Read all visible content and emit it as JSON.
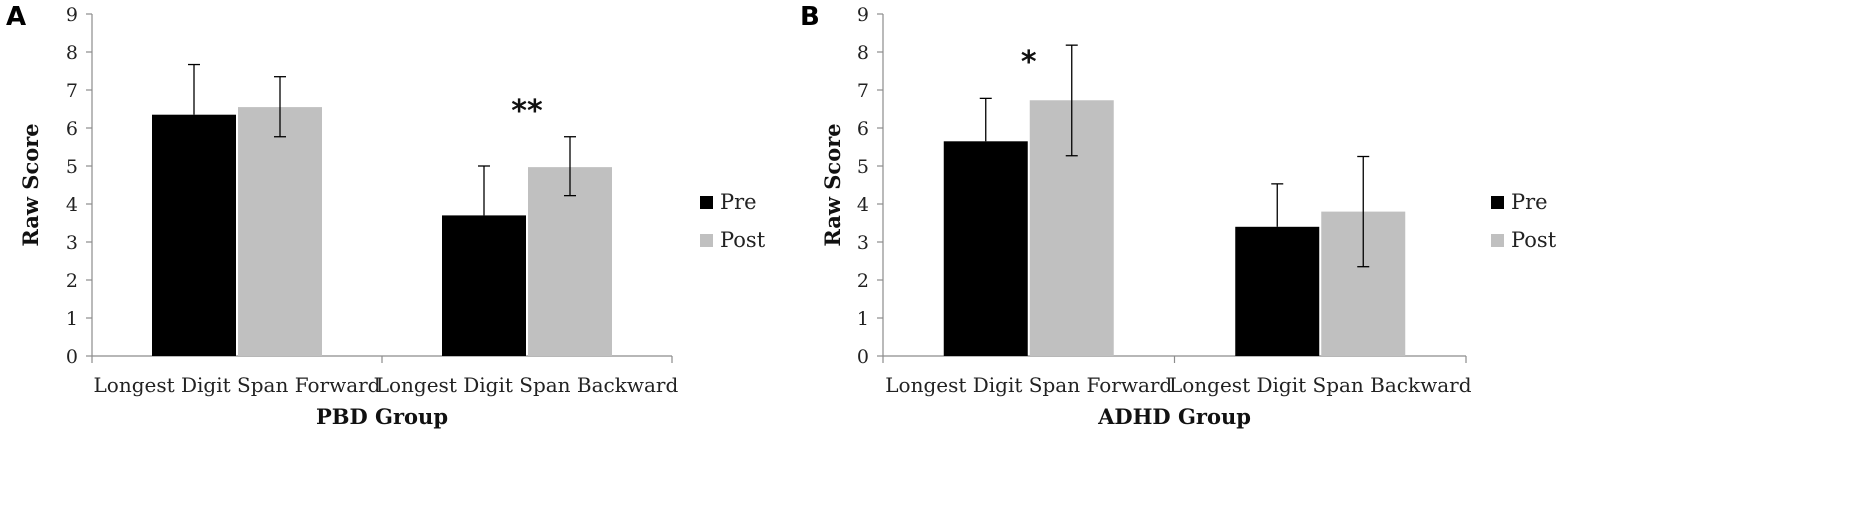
{
  "chart_data": [
    {
      "panel": "A",
      "type": "bar",
      "categories": [
        "Longest Digit Span Forward",
        "Longest Digit Span Backward"
      ],
      "series": [
        {
          "name": "Pre",
          "color": "#000000",
          "values": [
            6.35,
            3.7
          ],
          "err_high": [
            7.67,
            5.0
          ],
          "err_low": [
            null,
            null
          ]
        },
        {
          "name": "Post",
          "color": "#c0c0c0",
          "values": [
            6.55,
            4.97
          ],
          "err_high": [
            7.35,
            5.77
          ],
          "err_low": [
            5.77,
            4.22
          ]
        }
      ],
      "ylabel": "Raw Score",
      "xlabel": "PBD Group",
      "ylim": [
        0,
        9
      ],
      "yticks": [
        "0",
        "1",
        "2",
        "3",
        "4",
        "5",
        "6",
        "7",
        "8",
        "9"
      ],
      "annotations": [
        {
          "text": "**",
          "category_index": 1,
          "value": 6.6
        }
      ],
      "legend": "right",
      "grid": false
    },
    {
      "panel": "B",
      "type": "bar",
      "categories": [
        "Longest Digit Span Forward",
        "Longest Digit Span Backward"
      ],
      "series": [
        {
          "name": "Pre",
          "color": "#000000",
          "values": [
            5.65,
            3.4
          ],
          "err_high": [
            6.78,
            4.53
          ],
          "err_low": [
            null,
            null
          ]
        },
        {
          "name": "Post",
          "color": "#c0c0c0",
          "values": [
            6.73,
            3.8
          ],
          "err_high": [
            8.18,
            5.25
          ],
          "err_low": [
            5.27,
            2.35
          ]
        }
      ],
      "ylabel": "Raw Score",
      "xlabel": "ADHD Group",
      "ylim": [
        0,
        9
      ],
      "yticks": [
        "0",
        "1",
        "2",
        "3",
        "4",
        "5",
        "6",
        "7",
        "8",
        "9"
      ],
      "annotations": [
        {
          "text": "*",
          "category_index": 0,
          "value": 7.9
        }
      ],
      "legend": "right",
      "grid": false
    }
  ]
}
